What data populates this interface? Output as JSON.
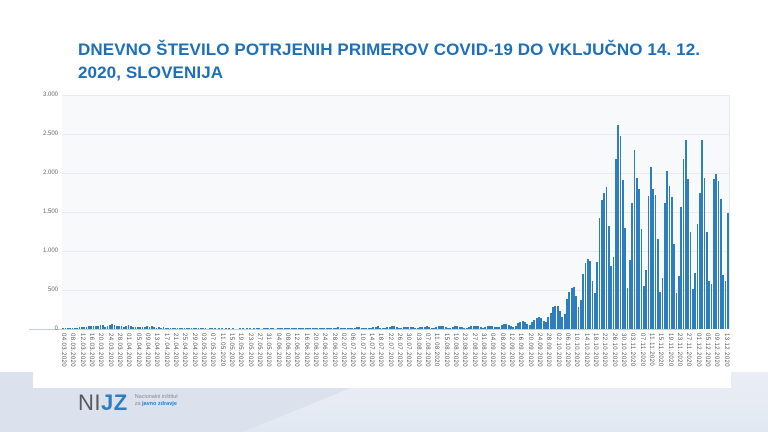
{
  "title": "DNEVNO ŠTEVILO POTRJENIH PRIMEROV COVID-19 DO VKLJUČNO 14. 12. 2020, SLOVENIJA",
  "colors": {
    "title_blue": "#1e6fb8",
    "bar_blue": "#2e7dbf",
    "footer_left": "#dbe1ed",
    "footer_right": "#eaeef6"
  },
  "footer": {
    "logo_ni": "NI",
    "logo_jz": "JZ",
    "tagline_line1": "Nacionalni inštitut",
    "tagline_line2_prefix": "za ",
    "tagline_line2_bold": "javno zdravje"
  },
  "chart_data": {
    "type": "bar",
    "title": "DNEVNO ŠTEVILO POTRJENIH PRIMEROV COVID-19 DO VKLJUČNO 14. 12. 2020, SLOVENIJA",
    "xlabel": "",
    "ylabel": "",
    "ylim": [
      0,
      3000
    ],
    "y_ticks": [
      0,
      500,
      1000,
      1500,
      2000,
      2500,
      3000
    ],
    "y_tick_labels": [
      "0",
      "500",
      "1.000",
      "1.500",
      "2.000",
      "2.500",
      "3.000"
    ],
    "grid": "horizontal",
    "legend": "none",
    "x_start": "04.03.2020",
    "x_end": "14.12.2020",
    "x_tick_step": 4,
    "x_tick_labels": [
      "04.03.2020",
      "08.03.2020",
      "12.03.2020",
      "16.03.2020",
      "20.03.2020",
      "24.03.2020",
      "28.03.2020",
      "01.04.2020",
      "05.04.2020",
      "09.04.2020",
      "13.04.2020",
      "17.04.2020",
      "21.04.2020",
      "25.04.2020",
      "29.04.2020",
      "03.05.2020",
      "07.05.2020",
      "11.05.2020",
      "15.05.2020",
      "19.05.2020",
      "23.05.2020",
      "27.05.2020",
      "31.05.2020",
      "04.06.2020",
      "08.06.2020",
      "12.06.2020",
      "16.06.2020",
      "20.06.2020",
      "24.06.2020",
      "28.06.2020",
      "02.07.2020",
      "06.07.2020",
      "10.07.2020",
      "14.07.2020",
      "18.07.2020",
      "22.07.2020",
      "26.07.2020",
      "30.07.2020",
      "03.08.2020",
      "07.08.2020",
      "11.08.2020",
      "15.08.2020",
      "19.08.2020",
      "23.08.2020",
      "27.08.2020",
      "31.08.2020",
      "04.09.2020",
      "08.09.2020",
      "12.09.2020",
      "16.09.2020",
      "20.09.2020",
      "24.09.2020",
      "28.09.2020",
      "02.10.2020",
      "06.10.2020",
      "10.10.2020",
      "14.10.2020",
      "18.10.2020",
      "22.10.2020",
      "26.10.2020",
      "30.10.2020",
      "03.11.2020",
      "07.11.2020",
      "11.11.2020",
      "15.11.2020",
      "19.11.2020",
      "23.11.2020",
      "27.11.2020",
      "01.12.2020",
      "05.12.2020",
      "09.12.2020",
      "13.12.2020"
    ],
    "values": [
      1,
      5,
      6,
      4,
      12,
      15,
      17,
      21,
      24,
      20,
      31,
      40,
      36,
      43,
      45,
      38,
      51,
      47,
      32,
      44,
      53,
      61,
      48,
      39,
      42,
      35,
      29,
      41,
      48,
      35,
      31,
      27,
      27,
      25,
      21,
      26,
      36,
      21,
      34,
      21,
      16,
      21,
      13,
      25,
      13,
      10,
      6,
      9,
      6,
      4,
      8,
      11,
      7,
      3,
      2,
      9,
      4,
      3,
      3,
      1,
      2,
      3,
      0,
      1,
      2,
      1,
      0,
      2,
      1,
      0,
      1,
      2,
      0,
      1,
      0,
      0,
      1,
      2,
      0,
      1,
      3,
      0,
      1,
      2,
      1,
      0,
      2,
      1,
      3,
      1,
      2,
      0,
      3,
      1,
      4,
      2,
      1,
      3,
      5,
      4,
      9,
      6,
      3,
      2,
      5,
      11,
      9,
      12,
      16,
      11,
      9,
      14,
      11,
      18,
      15,
      9,
      6,
      19,
      23,
      15,
      11,
      19,
      16,
      8,
      5,
      14,
      23,
      29,
      13,
      19,
      11,
      6,
      13,
      27,
      25,
      35,
      19,
      13,
      11,
      21,
      29,
      34,
      33,
      21,
      14,
      11,
      23,
      31,
      29,
      27,
      20,
      10,
      15,
      30,
      25,
      32,
      40,
      26,
      15,
      12,
      24,
      42,
      36,
      34,
      30,
      18,
      14,
      28,
      34,
      38,
      32,
      26,
      19,
      12,
      26,
      39,
      44,
      42,
      37,
      22,
      16,
      30,
      35,
      45,
      40,
      28,
      20,
      25,
      55,
      65,
      60,
      55,
      40,
      28,
      45,
      75,
      90,
      105,
      95,
      70,
      55,
      95,
      115,
      140,
      150,
      135,
      105,
      85,
      150,
      210,
      280,
      300,
      290,
      230,
      150,
      190,
      390,
      480,
      520,
      540,
      420,
      280,
      370,
      710,
      840,
      900,
      870,
      620,
      460,
      860,
      1420,
      1660,
      1740,
      1820,
      1320,
      810,
      920,
      2180,
      2610,
      2480,
      1910,
      1300,
      520,
      890,
      1620,
      2290,
      1940,
      1800,
      1280,
      550,
      760,
      1700,
      2080,
      1790,
      1720,
      1150,
      480,
      650,
      1620,
      2020,
      1830,
      1690,
      1090,
      460,
      680,
      1570,
      2180,
      2420,
      1920,
      1250,
      510,
      720,
      1350,
      1750,
      2420,
      1940,
      1250,
      620,
      580,
      1920,
      1990,
      1900,
      1670,
      690,
      610,
      1490
    ]
  }
}
